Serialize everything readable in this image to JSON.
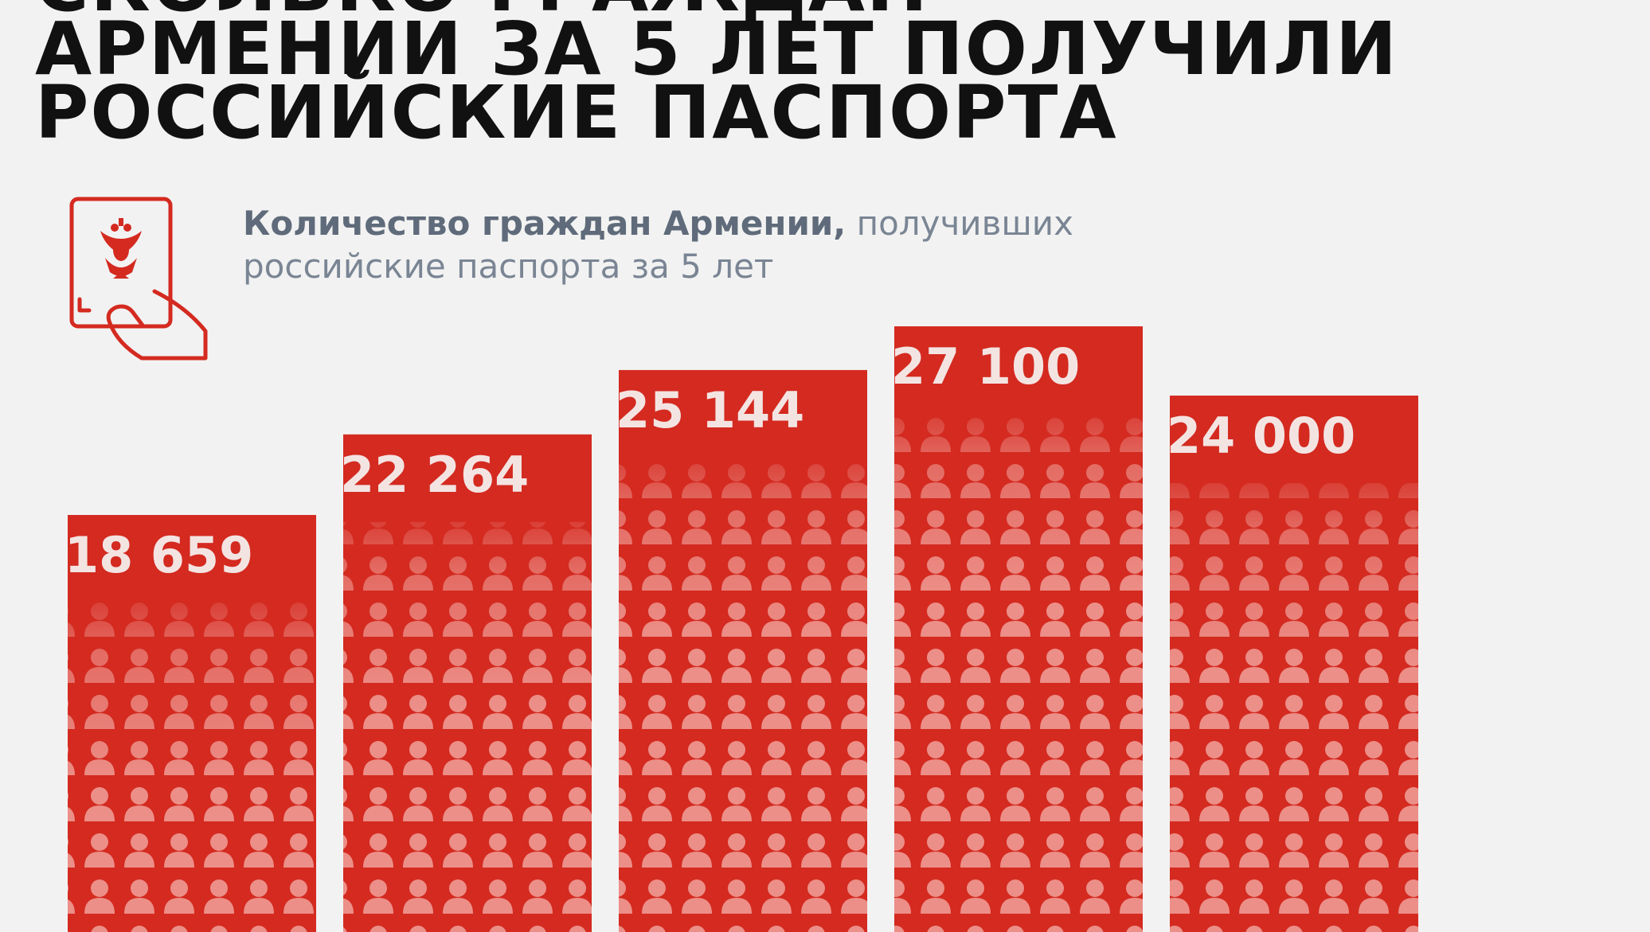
{
  "title": {
    "line1": "СКОЛЬКО ГРАЖДАН",
    "line2": "АРМЕНИИ ЗА 5 ЛЕТ ПОЛУЧИЛИ",
    "line3": "РОССИЙСКИЕ ПАСПОРТА"
  },
  "subtitle": {
    "bold": "Количество граждан Армении,",
    "rest": " получивших российские паспорта за 5 лет"
  },
  "icon": "passport-in-hand-icon",
  "colors": {
    "background": "#f2f2f2",
    "bar": "#d42a20",
    "label": "#f3e4e2",
    "icon": "#d42a20",
    "subtitle": "#7a8594"
  },
  "chart_data": {
    "type": "bar",
    "ylim": [
      0,
      30000
    ],
    "values": [
      18659,
      22264,
      25144,
      27100,
      24000
    ],
    "labels": [
      "18 659",
      "22 264",
      "25 144",
      "27 100",
      "24 000"
    ]
  }
}
